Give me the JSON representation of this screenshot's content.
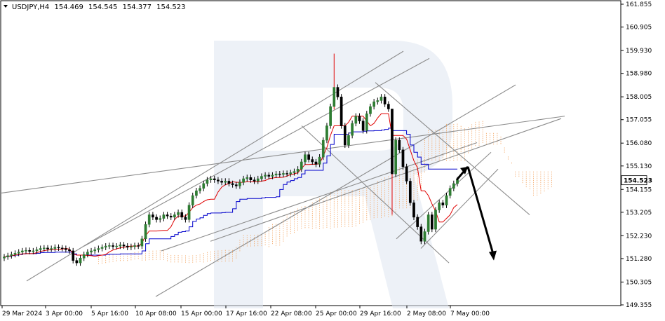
{
  "header": {
    "symbol": "USDJPY,H4",
    "open": "154.469",
    "high": "154.545",
    "low": "154.377",
    "close": "154.523",
    "menu_icon": "triangle-down-icon"
  },
  "price_axis": {
    "labels": [
      "161.855",
      "160.905",
      "159.930",
      "158.980",
      "158.005",
      "157.055",
      "156.080",
      "155.130",
      "154.155",
      "153.205",
      "152.230",
      "151.280",
      "150.305",
      "149.355"
    ],
    "current_price": "154.523",
    "badge_color": "#ffffff"
  },
  "time_axis": {
    "labels": [
      "29 Mar 2024",
      "3 Apr 00:00",
      "5 Apr 16:00",
      "10 Apr 08:00",
      "15 Apr 00:00",
      "17 Apr 16:00",
      "22 Apr 08:00",
      "25 Apr 00:00",
      "29 Apr 16:00",
      "2 May 08:00",
      "7 May 00:00"
    ]
  },
  "colors": {
    "bull_candle": "#2e7d32",
    "bear_candle": "#000000",
    "tenkan": "#e00000",
    "kijun": "#0000cc",
    "cloud": "#f4a460",
    "trendline": "#8c8c8c",
    "forecast_arrow": "#000000",
    "watermark": "#dfe6f0"
  },
  "chart_data": {
    "type": "candlestick",
    "symbol": "USDJPY,H4",
    "y_range": [
      149.355,
      161.855
    ],
    "x_labels": [
      "29 Mar 2024",
      "3 Apr 00:00",
      "5 Apr 16:00",
      "10 Apr 08:00",
      "15 Apr 00:00",
      "17 Apr 16:00",
      "22 Apr 08:00",
      "25 Apr 00:00",
      "29 Apr 16:00",
      "2 May 08:00",
      "7 May 00:00"
    ],
    "series": [
      {
        "close": [
          151.35,
          151.4,
          151.45,
          151.5,
          151.55,
          151.6,
          151.62,
          151.58,
          151.6,
          151.65,
          151.7,
          151.72,
          151.68,
          151.7,
          151.75,
          151.72,
          151.7,
          151.65,
          151.6,
          151.2,
          151.1,
          151.3,
          151.45,
          151.55,
          151.6,
          151.65,
          151.7,
          151.75,
          151.8,
          151.82,
          151.78,
          151.8,
          151.85,
          151.8,
          151.75,
          151.78,
          151.82,
          151.8,
          152.1,
          152.7,
          153.1,
          153.0,
          152.9,
          152.95,
          153.1,
          153.05,
          153.0,
          153.1,
          153.2,
          153.0,
          152.9,
          153.5,
          153.9,
          154.1,
          154.2,
          154.4,
          154.55,
          154.6,
          154.55,
          154.5,
          154.45,
          154.5,
          154.4,
          154.35,
          154.3,
          154.45,
          154.6,
          154.65,
          154.55,
          154.5,
          154.6,
          154.7,
          154.75,
          154.7,
          154.75,
          154.8,
          154.78,
          154.82,
          154.8,
          154.85,
          154.9,
          155.0,
          155.3,
          155.6,
          155.4,
          155.3,
          155.2,
          155.5,
          156.2,
          156.8,
          157.6,
          158.4,
          158.0,
          156.8,
          156.0,
          156.4,
          156.9,
          157.2,
          157.0,
          156.6,
          157.3,
          157.6,
          157.8,
          157.85,
          158.0,
          157.7,
          157.5,
          154.8,
          156.2,
          155.8,
          155.1,
          154.5,
          153.6,
          153.0,
          152.6,
          152.0,
          152.4,
          153.1,
          152.5,
          153.3,
          153.6,
          153.5,
          153.9,
          154.2,
          154.4,
          154.55
        ],
        "name": ""
      }
    ],
    "indicators": [
      "Ichimoku Kinko Hyo"
    ],
    "grid": false,
    "forecast": {
      "direction": "up then down",
      "target_high": 155.1,
      "target_low": 151.2
    }
  }
}
